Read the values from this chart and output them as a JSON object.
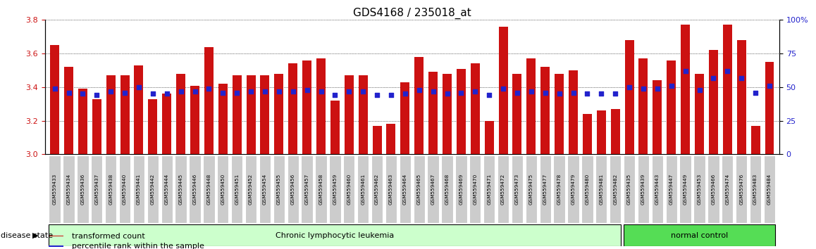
{
  "title": "GDS4168 / 235018_at",
  "samples": [
    "GSM559433",
    "GSM559434",
    "GSM559436",
    "GSM559437",
    "GSM559438",
    "GSM559440",
    "GSM559441",
    "GSM559442",
    "GSM559444",
    "GSM559445",
    "GSM559446",
    "GSM559448",
    "GSM559450",
    "GSM559451",
    "GSM559452",
    "GSM559454",
    "GSM559455",
    "GSM559456",
    "GSM559457",
    "GSM559458",
    "GSM559459",
    "GSM559460",
    "GSM559461",
    "GSM559462",
    "GSM559463",
    "GSM559464",
    "GSM559465",
    "GSM559467",
    "GSM559468",
    "GSM559469",
    "GSM559470",
    "GSM559471",
    "GSM559472",
    "GSM559473",
    "GSM559475",
    "GSM559477",
    "GSM559478",
    "GSM559479",
    "GSM559480",
    "GSM559481",
    "GSM559482",
    "GSM559435",
    "GSM559439",
    "GSM559443",
    "GSM559447",
    "GSM559449",
    "GSM559453",
    "GSM559466",
    "GSM559474",
    "GSM559476",
    "GSM559483",
    "GSM559484"
  ],
  "bar_values": [
    3.65,
    3.52,
    3.39,
    3.33,
    3.47,
    3.47,
    3.53,
    3.33,
    3.36,
    3.48,
    3.41,
    3.64,
    3.42,
    3.47,
    3.47,
    3.47,
    3.48,
    3.54,
    3.56,
    3.57,
    3.32,
    3.47,
    3.47,
    3.17,
    3.18,
    3.43,
    3.58,
    3.49,
    3.48,
    3.51,
    3.54,
    3.2,
    3.76,
    3.48,
    3.57,
    3.52,
    3.48,
    3.5,
    3.24,
    3.26,
    3.27,
    3.68,
    3.57,
    3.44,
    3.56,
    3.77,
    3.48,
    3.62,
    3.77,
    3.68,
    3.17,
    3.55
  ],
  "percentile_values": [
    49,
    46,
    45,
    44,
    47,
    46,
    50,
    45,
    45,
    47,
    47,
    49,
    46,
    46,
    47,
    47,
    47,
    47,
    48,
    47,
    44,
    47,
    47,
    44,
    44,
    45,
    48,
    47,
    45,
    46,
    47,
    44,
    49,
    46,
    47,
    46,
    45,
    46,
    45,
    45,
    45,
    50,
    49,
    49,
    51,
    62,
    48,
    57,
    62,
    57,
    46,
    51
  ],
  "disease_groups": [
    {
      "label": "Chronic lymphocytic leukemia",
      "start": 0,
      "end": 41,
      "color": "#ccffcc"
    },
    {
      "label": "normal control",
      "start": 41,
      "end": 52,
      "color": "#55dd55"
    }
  ],
  "bar_color": "#cc1111",
  "percentile_color": "#2222cc",
  "ylim_left": [
    3.0,
    3.8
  ],
  "ylim_right": [
    0,
    100
  ],
  "yticks_left": [
    3.0,
    3.2,
    3.4,
    3.6,
    3.8
  ],
  "yticks_right": [
    0,
    25,
    50,
    75,
    100
  ],
  "ylabel_left_color": "#cc1111",
  "ylabel_right_color": "#2222cc",
  "grid_color": "#888888",
  "title_fontsize": 11,
  "tick_fontsize": 8,
  "legend_items": [
    {
      "label": "transformed count",
      "color": "#cc1111"
    },
    {
      "label": "percentile rank within the sample",
      "color": "#2222cc"
    }
  ],
  "disease_label": "disease state",
  "tick_label_bg": "#cccccc",
  "background_color": "#ffffff",
  "n_cll": 41,
  "n_total": 52
}
